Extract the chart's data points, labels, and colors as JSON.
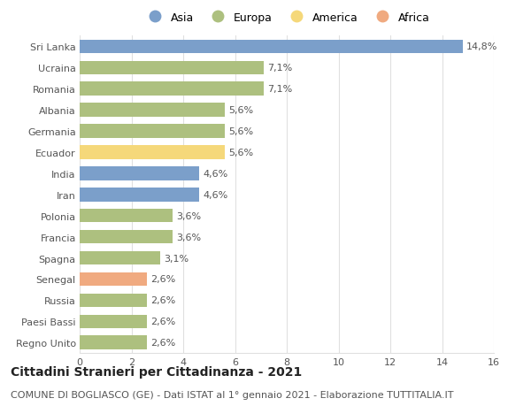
{
  "title": "Cittadini Stranieri per Cittadinanza - 2021",
  "subtitle": "COMUNE DI BOGLIASCO (GE) - Dati ISTAT al 1° gennaio 2021 - Elaborazione TUTTITALIA.IT",
  "categories": [
    "Sri Lanka",
    "Ucraina",
    "Romania",
    "Albania",
    "Germania",
    "Ecuador",
    "India",
    "Iran",
    "Polonia",
    "Francia",
    "Spagna",
    "Senegal",
    "Russia",
    "Paesi Bassi",
    "Regno Unito"
  ],
  "values": [
    14.8,
    7.1,
    7.1,
    5.6,
    5.6,
    5.6,
    4.6,
    4.6,
    3.6,
    3.6,
    3.1,
    2.6,
    2.6,
    2.6,
    2.6
  ],
  "labels": [
    "14,8%",
    "7,1%",
    "7,1%",
    "5,6%",
    "5,6%",
    "5,6%",
    "4,6%",
    "4,6%",
    "3,6%",
    "3,6%",
    "3,1%",
    "2,6%",
    "2,6%",
    "2,6%",
    "2,6%"
  ],
  "colors": [
    "#7b9fca",
    "#adc07f",
    "#adc07f",
    "#adc07f",
    "#adc07f",
    "#f5d87a",
    "#7b9fca",
    "#7b9fca",
    "#adc07f",
    "#adc07f",
    "#adc07f",
    "#f0aa80",
    "#adc07f",
    "#adc07f",
    "#adc07f"
  ],
  "continent_labels": [
    "Asia",
    "Europa",
    "America",
    "Africa"
  ],
  "continent_colors": [
    "#7b9fca",
    "#adc07f",
    "#f5d87a",
    "#f0aa80"
  ],
  "xlim": [
    0,
    16
  ],
  "xticks": [
    0,
    2,
    4,
    6,
    8,
    10,
    12,
    14,
    16
  ],
  "background_color": "#ffffff",
  "grid_color": "#e0e0e0",
  "bar_height": 0.65,
  "title_fontsize": 10,
  "subtitle_fontsize": 8,
  "label_fontsize": 8,
  "tick_fontsize": 8,
  "legend_fontsize": 9
}
